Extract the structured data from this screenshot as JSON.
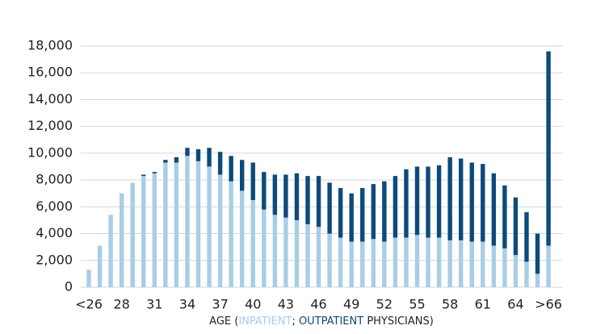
{
  "chart_data": {
    "type": "stacked_bar",
    "categories": [
      "<26",
      null,
      null,
      "28",
      null,
      null,
      "31",
      null,
      null,
      "34",
      null,
      null,
      "37",
      null,
      null,
      "40",
      null,
      null,
      "43",
      null,
      null,
      "46",
      null,
      null,
      "49",
      null,
      null,
      "52",
      null,
      null,
      "55",
      null,
      null,
      "58",
      null,
      null,
      "61",
      null,
      null,
      "64",
      null,
      null,
      ">66"
    ],
    "series": [
      {
        "name": "INPATIENT",
        "color": "#a9cde6",
        "values": [
          1300,
          3100,
          5400,
          7000,
          7800,
          8300,
          8500,
          9300,
          9300,
          9800,
          9400,
          9000,
          8400,
          7900,
          7200,
          6500,
          5800,
          5400,
          5200,
          5000,
          4700,
          4500,
          4000,
          3700,
          3400,
          3400,
          3600,
          3400,
          3700,
          3700,
          3900,
          3700,
          3700,
          3500,
          3500,
          3400,
          3400,
          3100,
          2900,
          2400,
          1900,
          1000,
          3100
        ]
      },
      {
        "name": "OUTPATIENT",
        "color": "#0c4a7c",
        "values": [
          0,
          0,
          0,
          0,
          0,
          100,
          100,
          200,
          400,
          600,
          900,
          1400,
          1700,
          1900,
          2300,
          2800,
          2800,
          3000,
          3200,
          3500,
          3600,
          3800,
          3800,
          3700,
          3600,
          4000,
          4100,
          4500,
          4600,
          5100,
          5100,
          5300,
          5400,
          6200,
          6100,
          5900,
          5800,
          5400,
          4700,
          4300,
          3700,
          3000,
          14500
        ]
      }
    ],
    "x_label_parts": [
      "AGE (",
      "; ",
      " PHYSICIANS)"
    ],
    "ylim": [
      0,
      18000
    ],
    "yticks": [
      0,
      {
        "value": 2000,
        "label": "2,000"
      },
      {
        "value": 4000,
        "label": "4,000"
      },
      {
        "value": 6000,
        "label": "6,000"
      },
      {
        "value": 8000,
        "label": "8,000"
      },
      {
        "value": 10000,
        "label": "10,000"
      },
      {
        "value": 12000,
        "label": "12,000"
      },
      {
        "value": 14000,
        "label": "14,000"
      },
      {
        "value": 16000,
        "label": "16,000"
      },
      {
        "value": 18000,
        "label": "18,000"
      }
    ],
    "grid": true
  }
}
